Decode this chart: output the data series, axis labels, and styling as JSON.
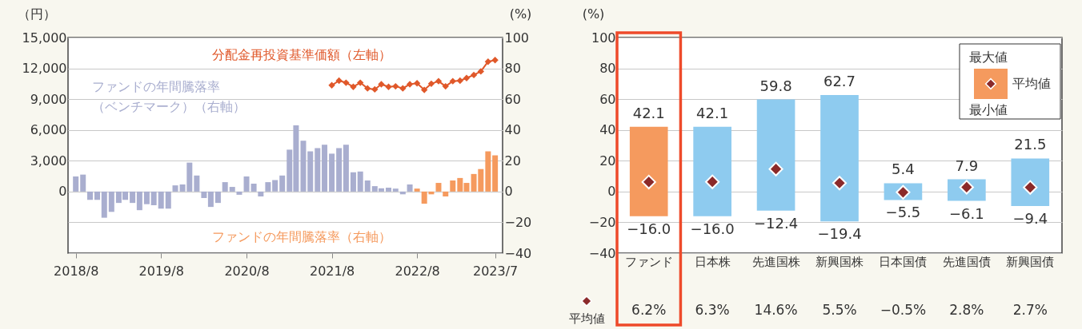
{
  "chart_data": [
    {
      "type": "bar",
      "ylabel": "（円）",
      "y2label": "(%)",
      "ylim": [
        -6000,
        15000
      ],
      "yticks": [
        0,
        {
          "value": 3000,
          "label": "3,000"
        },
        {
          "value": 6000,
          "label": "6,000"
        },
        {
          "value": 9000,
          "label": "9,000"
        },
        {
          "value": 12000,
          "label": "12,000"
        },
        {
          "value": 15000,
          "label": "15,000"
        }
      ],
      "y2lim": [
        -40,
        100
      ],
      "y2ticks": [
        {
          "value": -40,
          "label": "−40"
        },
        {
          "value": -20,
          "label": "−20"
        },
        0,
        20,
        40,
        60,
        80,
        100
      ],
      "xlim": [
        "2018-07-16",
        "2023-07-16"
      ],
      "xticks": [
        {
          "value": "2018-08",
          "label": "2018/8"
        },
        {
          "value": "2019-08",
          "label": "2019/8"
        },
        {
          "value": "2020-08",
          "label": "2020/8"
        },
        {
          "value": "2021-08",
          "label": "2021/8"
        },
        {
          "value": "2022-08",
          "label": "2022/8"
        },
        {
          "value": "2023-07",
          "label": "2023/7"
        }
      ],
      "grid": "y",
      "series": [
        {
          "name": "ファンドの年間騰落率（ベンチマーク）（右軸）",
          "type": "bar",
          "axis": "y2",
          "color": "#a9aecf",
          "x": [
            "2018-08",
            "2018-09",
            "2018-10",
            "2018-11",
            "2018-12",
            "2019-01",
            "2019-02",
            "2019-03",
            "2019-04",
            "2019-05",
            "2019-06",
            "2019-07",
            "2019-08",
            "2019-09",
            "2019-10",
            "2019-11",
            "2019-12",
            "2020-01",
            "2020-02",
            "2020-03",
            "2020-04",
            "2020-05",
            "2020-06",
            "2020-07",
            "2020-08",
            "2020-09",
            "2020-10",
            "2020-11",
            "2020-12",
            "2021-01",
            "2021-02",
            "2021-03",
            "2021-04",
            "2021-05",
            "2021-06",
            "2021-07",
            "2021-08",
            "2021-09",
            "2021-10",
            "2021-11",
            "2021-12",
            "2022-01",
            "2022-02",
            "2022-03",
            "2022-04",
            "2022-05",
            "2022-06",
            "2022-07"
          ],
          "values": [
            9.8,
            11,
            -5.4,
            -5.4,
            -17,
            -13.2,
            -7.4,
            -5.4,
            -7.4,
            -12.1,
            -8.2,
            -8.9,
            -11.1,
            -11.1,
            4,
            4.6,
            18.8,
            10.4,
            -4.2,
            -10,
            -7.4,
            6.1,
            3,
            -2.1,
            9.8,
            5.1,
            -3.2,
            6.1,
            7.5,
            10.4,
            27.2,
            43,
            33,
            26.1,
            28.2,
            30.4,
            24.6,
            28.2,
            30.4,
            12.5,
            13,
            7.2,
            3.5,
            2.1,
            2.5,
            1.9,
            -1.8,
            4.6
          ]
        },
        {
          "name": "ファンドの年間騰落率（右軸）",
          "type": "bar",
          "axis": "y2",
          "color": "#f59a5e",
          "x": [
            "2022-08",
            "2022-09",
            "2022-10",
            "2022-11",
            "2022-12",
            "2023-01",
            "2023-02",
            "2023-03",
            "2023-04",
            "2023-05",
            "2023-06",
            "2023-07"
          ],
          "values": [
            1.9,
            -7.9,
            -1.8,
            5.6,
            -3.2,
            7.2,
            8.8,
            5.6,
            11.4,
            14.6,
            26.1,
            23.5
          ]
        },
        {
          "name": "分配金再投資基準価額（左軸）",
          "type": "line",
          "axis": "y",
          "color": "#e0582a",
          "marker": "diamond",
          "x": [
            "2021-08",
            "2021-09",
            "2021-10",
            "2021-11",
            "2021-12",
            "2022-01",
            "2022-02",
            "2022-03",
            "2022-04",
            "2022-05",
            "2022-06",
            "2022-07",
            "2022-08",
            "2022-09",
            "2022-10",
            "2022-11",
            "2022-12",
            "2023-01",
            "2023-02",
            "2023-03",
            "2023-04",
            "2023-05",
            "2023-06",
            "2023-07"
          ],
          "values": [
            10350,
            10800,
            10600,
            10200,
            10600,
            10050,
            9950,
            10450,
            10200,
            10250,
            10050,
            10450,
            10550,
            9900,
            10500,
            10750,
            10250,
            10750,
            10800,
            11050,
            11350,
            11700,
            12650,
            12800
          ]
        }
      ]
    },
    {
      "type": "bar",
      "ylabel": "(%)",
      "categories": [
        "ファンド",
        "日本株",
        "先進国株",
        "新興国株",
        "日本国債",
        "先進国債",
        "新興国債"
      ],
      "base": [
        -16.0,
        -16.0,
        -12.4,
        -19.4,
        -5.5,
        -6.1,
        -9.4
      ],
      "values": [
        58.1,
        58.1,
        72.2,
        82.1,
        10.9,
        14.0,
        30.9
      ],
      "colors": [
        "#f59a5e",
        "#8ecbef",
        "#8ecbef",
        "#8ecbef",
        "#8ecbef",
        "#8ecbef",
        "#8ecbef"
      ],
      "ylim": [
        -40,
        100
      ],
      "yticks": [
        {
          "value": -40,
          "label": "−40"
        },
        {
          "value": -20,
          "label": "−20"
        },
        0,
        20,
        40,
        60,
        80,
        100
      ],
      "grid": "y",
      "legend": "top right",
      "series": [
        {
          "name": "平均値",
          "type": "scatter",
          "color": "#8b2a2a",
          "marker": "diamond",
          "x": [
            "ファンド",
            "日本株",
            "先進国株",
            "新興国株",
            "日本国債",
            "先進国債",
            "新興国債"
          ],
          "values": [
            6.2,
            6.3,
            14.6,
            5.5,
            -0.5,
            2.8,
            2.7
          ],
          "value_labels": [
            "6.2%",
            "6.3%",
            "14.6%",
            "5.5%",
            "−0.5%",
            "2.8%",
            "2.7%"
          ]
        }
      ],
      "annotations": [
        "最大値",
        "最小値",
        {
          "text": "42.1",
          "x": "ファンド",
          "y": 42.1
        },
        {
          "text": "−16.0",
          "x": "ファンド",
          "y": -16.0
        },
        {
          "text": "42.1",
          "x": "日本株",
          "y": 42.1
        },
        {
          "text": "−16.0",
          "x": "日本株",
          "y": -16.0
        },
        {
          "text": "59.8",
          "x": "先進国株",
          "y": 59.8
        },
        {
          "text": "−12.4",
          "x": "先進国株",
          "y": -12.4
        },
        {
          "text": "62.7",
          "x": "新興国株",
          "y": 62.7
        },
        {
          "text": "−19.4",
          "x": "新興国株",
          "y": -19.4
        },
        {
          "text": "5.4",
          "x": "日本国債",
          "y": 5.4
        },
        {
          "text": "−5.5",
          "x": "日本国債",
          "y": -5.5
        },
        {
          "text": "7.9",
          "x": "先進国債",
          "y": 7.9
        },
        {
          "text": "−6.1",
          "x": "先進国債",
          "y": -6.1
        },
        {
          "text": "21.5",
          "x": "新興国債",
          "y": 21.5
        },
        {
          "text": "−9.4",
          "x": "新興国債",
          "y": -9.4
        }
      ]
    }
  ]
}
